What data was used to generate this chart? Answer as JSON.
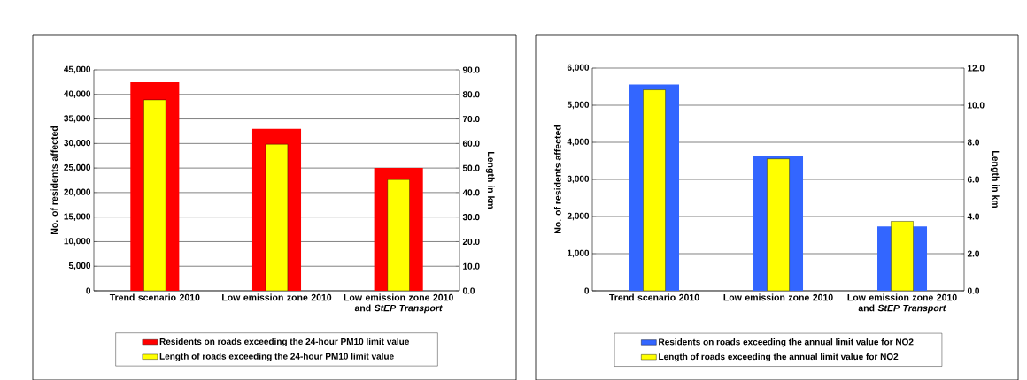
{
  "chart_data": [
    {
      "type": "bar",
      "categories": [
        "Trend scenario 2010",
        "Low emission zone 2010",
        "Low emission zone 2010 and *StEP Transport*"
      ],
      "series": [
        {
          "name": "Residents on roads exceeding the 24-hour PM10 limit value",
          "color": "#ff0000",
          "values": [
            42500,
            33000,
            25000
          ]
        },
        {
          "name": "Length of roads exceeding the 24-hour PM10 limit value",
          "color": "#ffff00",
          "values": [
            77.8,
            59.7,
            45.3
          ],
          "axis": "y2"
        }
      ],
      "ylabel": "No. of residents affected",
      "y2label": "Length in km",
      "ylim": [
        0,
        45000
      ],
      "yticks": [
        0,
        {
          "value": 5000,
          "label": "5,000"
        },
        {
          "value": 10000,
          "label": "10,000"
        },
        {
          "value": 15000,
          "label": "15,000"
        },
        {
          "value": 20000,
          "label": "20,000"
        },
        {
          "value": 25000,
          "label": "25,000"
        },
        {
          "value": 30000,
          "label": "30,000"
        },
        {
          "value": 35000,
          "label": "35,000"
        },
        {
          "value": 40000,
          "label": "40,000"
        },
        {
          "value": 45000,
          "label": "45,000"
        }
      ],
      "y2lim": [
        0,
        90
      ],
      "y2ticks": [
        {
          "value": 0,
          "label": "0.0"
        },
        {
          "value": 10,
          "label": "10.0"
        },
        {
          "value": 20,
          "label": "20.0"
        },
        {
          "value": 30,
          "label": "30.0"
        },
        {
          "value": 40,
          "label": "40.0"
        },
        {
          "value": 50,
          "label": "50.0"
        },
        {
          "value": 60,
          "label": "60.0"
        },
        {
          "value": 70,
          "label": "70.0"
        },
        {
          "value": 80,
          "label": "80.0"
        },
        {
          "value": 90,
          "label": "90.0"
        }
      ],
      "grid": "y",
      "legend": "bottom"
    },
    {
      "type": "bar",
      "categories": [
        "Trend scenario 2010",
        "Low emission zone 2010",
        "Low emission zone 2010 and *StEP Transport*"
      ],
      "series": [
        {
          "name": "Residents on roads exceeding the annual limit value for NO2",
          "color": "#3366ff",
          "values": [
            5560,
            3630,
            1730
          ]
        },
        {
          "name": "Length of roads exceeding the annual limit value for NO2",
          "color": "#ffff00",
          "values": [
            10.83,
            7.11,
            3.74
          ],
          "axis": "y2"
        }
      ],
      "ylabel": "No. of residents affected",
      "y2label": "Length in km",
      "ylim": [
        0,
        6000
      ],
      "yticks": [
        0,
        {
          "value": 1000,
          "label": "1,000"
        },
        {
          "value": 2000,
          "label": "2,000"
        },
        {
          "value": 3000,
          "label": "3,000"
        },
        {
          "value": 4000,
          "label": "4,000"
        },
        {
          "value": 5000,
          "label": "5,000"
        },
        {
          "value": 6000,
          "label": "6,000"
        }
      ],
      "y2lim": [
        0,
        12
      ],
      "y2ticks": [
        {
          "value": 0,
          "label": "0.0"
        },
        {
          "value": 2,
          "label": "2.0"
        },
        {
          "value": 4,
          "label": "4.0"
        },
        {
          "value": 6,
          "label": "6.0"
        },
        {
          "value": 8,
          "label": "8.0"
        },
        {
          "value": 10,
          "label": "10.0"
        },
        {
          "value": 12,
          "label": "12.0"
        }
      ],
      "grid": "y",
      "legend": "bottom"
    }
  ]
}
